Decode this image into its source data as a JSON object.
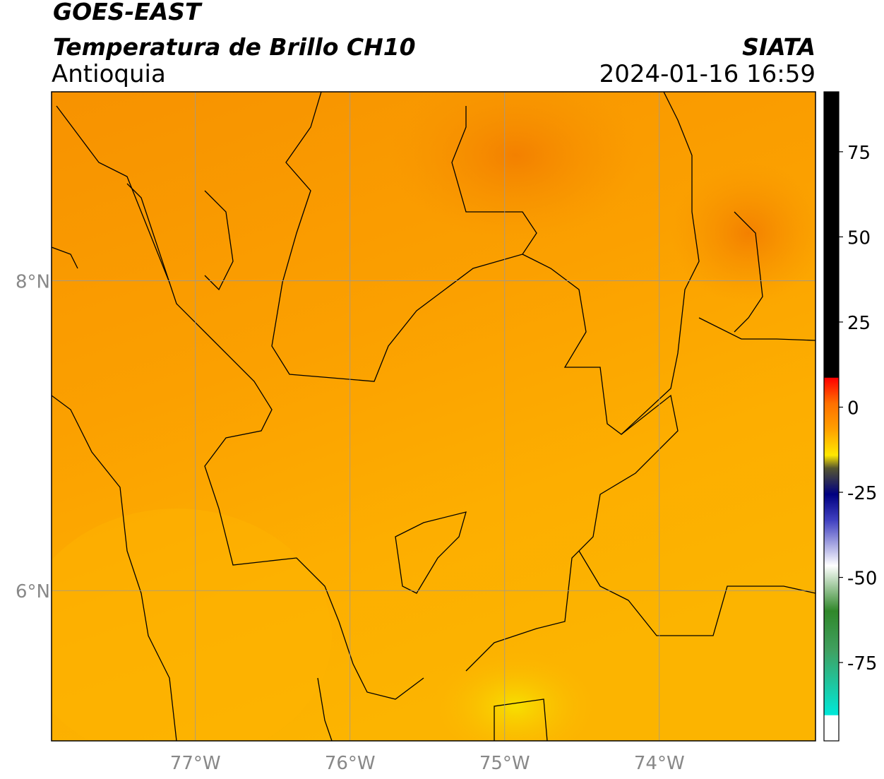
{
  "header": {
    "title": "GOES-EAST",
    "subtitle": "Temperatura de Brillo CH10",
    "region": "Antioquia",
    "source": "SIATA",
    "timestamp": "2024-01-16 16:59"
  },
  "map": {
    "lonlim": [
      -77.93,
      -72.99
    ],
    "latlim": [
      5.03,
      9.22
    ],
    "lon_ticks": [
      {
        "value": -77,
        "label": "77°W"
      },
      {
        "value": -76,
        "label": "76°W"
      },
      {
        "value": -75,
        "label": "75°W"
      },
      {
        "value": -74,
        "label": "74°W"
      }
    ],
    "lat_ticks": [
      {
        "value": 8,
        "label": "8°N"
      },
      {
        "value": 6,
        "label": "6°N"
      }
    ]
  },
  "colorbar": {
    "lim": [
      -98,
      92.6
    ],
    "ticks": [
      75,
      50,
      25,
      0,
      -25,
      -50,
      -75
    ]
  }
}
